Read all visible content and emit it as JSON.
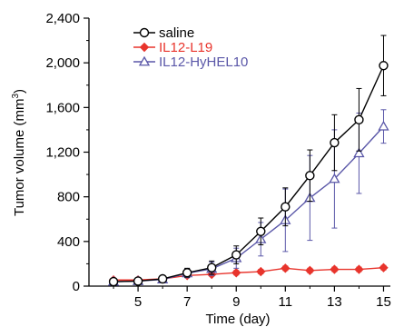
{
  "chart_data": {
    "type": "line",
    "title": "",
    "xlabel": "Time (day)",
    "ylabel": "Tumor volume (mm",
    "ylabel_sup": "3",
    "ylabel_close": ")",
    "xlim": [
      3,
      15.5
    ],
    "ylim": [
      0,
      2400
    ],
    "x_ticks": [
      5,
      7,
      9,
      11,
      13,
      15
    ],
    "x_minor_ticks": [
      4,
      6,
      8,
      10,
      12,
      14
    ],
    "y_ticks": [
      0,
      400,
      800,
      1200,
      1600,
      2000,
      2400
    ],
    "y_tick_labels": [
      "0",
      "400",
      "800",
      "1,200",
      "1,600",
      "2,000",
      "2,400"
    ],
    "grid": false,
    "legend_position": "top-left",
    "series": [
      {
        "name": "saline",
        "color": "#000000",
        "marker": "circle",
        "x": [
          4,
          5,
          6,
          7,
          8,
          9,
          10,
          11,
          12,
          13,
          14,
          15
        ],
        "y": [
          40,
          45,
          65,
          120,
          165,
          280,
          490,
          710,
          990,
          1285,
          1490,
          1975
        ],
        "err": [
          10,
          10,
          15,
          40,
          60,
          80,
          120,
          170,
          230,
          250,
          280,
          270
        ]
      },
      {
        "name": "IL12-L19",
        "color": "#e8342c",
        "marker": "diamond",
        "x": [
          4,
          5,
          6,
          7,
          8,
          9,
          10,
          11,
          12,
          13,
          14,
          15
        ],
        "y": [
          55,
          55,
          65,
          95,
          105,
          120,
          130,
          160,
          140,
          150,
          150,
          165
        ],
        "err": [
          8,
          8,
          10,
          15,
          15,
          20,
          20,
          20,
          20,
          20,
          20,
          20
        ]
      },
      {
        "name": "IL12-HyHEL10",
        "color": "#5a57a8",
        "marker": "triangle",
        "x": [
          4,
          5,
          6,
          7,
          8,
          9,
          10,
          11,
          12,
          13,
          14,
          15
        ],
        "y": [
          40,
          45,
          60,
          115,
          155,
          250,
          420,
          590,
          790,
          960,
          1190,
          1430
        ],
        "err": [
          10,
          10,
          15,
          40,
          60,
          90,
          150,
          280,
          380,
          440,
          360,
          150
        ]
      }
    ]
  }
}
